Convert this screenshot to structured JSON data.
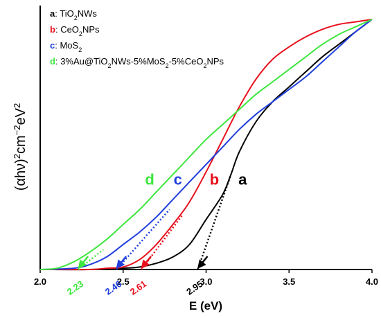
{
  "chart_data": {
    "type": "line",
    "title": "",
    "xlabel": "E (eV)",
    "ylabel": "(αhν)²cm⁻²eV²",
    "ylabel_parts": {
      "base": "(αhν)",
      "sup1": "2",
      "mid": "cm",
      "sup2": "−2",
      "unit": "eV",
      "sup3": "2"
    },
    "xlim": [
      2.0,
      4.0
    ],
    "ylim": [
      0,
      1.0
    ],
    "x_ticks": [
      "2.0",
      "2.5",
      "3.0",
      "3.5",
      "4.0"
    ],
    "x_tick_values": [
      2.0,
      2.5,
      3.0,
      3.5,
      4.0
    ],
    "legend_position": "top-left",
    "grid": false,
    "series": [
      {
        "key": "a",
        "legend": {
          "pre": "TiO",
          "sub": "2",
          "post": "NWs"
        },
        "color": "#000000",
        "x": [
          2.0,
          2.3,
          2.5,
          2.6,
          2.7,
          2.8,
          2.9,
          3.0,
          3.1,
          3.15,
          3.2,
          3.3,
          3.4,
          3.5,
          3.6,
          3.7,
          3.8,
          3.9,
          4.0
        ],
        "y": [
          0.0,
          0.0,
          0.005,
          0.01,
          0.025,
          0.05,
          0.1,
          0.2,
          0.3,
          0.38,
          0.47,
          0.59,
          0.67,
          0.73,
          0.79,
          0.85,
          0.9,
          0.95,
          1.0
        ],
        "gap_value": "2.95",
        "tangent": {
          "x": [
            2.95,
            3.15
          ],
          "y": [
            0.0,
            0.38
          ]
        }
      },
      {
        "key": "b",
        "legend": {
          "pre": "CeO",
          "sub": "2",
          "post": "NPs"
        },
        "color": "#e8101c",
        "x": [
          2.0,
          2.3,
          2.4,
          2.5,
          2.6,
          2.7,
          2.8,
          2.9,
          3.0,
          3.1,
          3.2,
          3.3,
          3.4,
          3.5,
          3.6,
          3.7,
          3.8,
          3.9,
          4.0
        ],
        "y": [
          0.0,
          0.0,
          0.005,
          0.01,
          0.04,
          0.1,
          0.18,
          0.27,
          0.39,
          0.52,
          0.65,
          0.76,
          0.84,
          0.89,
          0.93,
          0.96,
          0.98,
          0.99,
          1.0
        ],
        "gap_value": "2.61",
        "tangent": {
          "x": [
            2.61,
            2.86
          ],
          "y": [
            0.0,
            0.22
          ]
        }
      },
      {
        "key": "c",
        "legend": {
          "pre": "MoS",
          "sub": "2",
          "post": ""
        },
        "color": "#1f3fdd",
        "x": [
          2.0,
          2.2,
          2.3,
          2.4,
          2.5,
          2.6,
          2.7,
          2.8,
          2.9,
          3.0,
          3.1,
          3.2,
          3.3,
          3.4,
          3.5,
          3.6,
          3.7,
          3.8,
          3.9,
          4.0
        ],
        "y": [
          0.0,
          0.005,
          0.02,
          0.05,
          0.1,
          0.15,
          0.21,
          0.28,
          0.35,
          0.42,
          0.49,
          0.56,
          0.62,
          0.67,
          0.72,
          0.77,
          0.83,
          0.89,
          0.95,
          1.0
        ],
        "gap_value": "2.46",
        "tangent": {
          "x": [
            2.46,
            2.78
          ],
          "y": [
            0.0,
            0.24
          ]
        }
      },
      {
        "key": "d",
        "legend": {
          "pre": "3%Au@TiO",
          "sub": "2",
          "post": "NWs-5%MoS",
          "sub2": "2",
          "post2": "-5%CeO",
          "sub3": "2",
          "post3": "NPs"
        },
        "color": "#3ee63e",
        "x": [
          2.0,
          2.1,
          2.2,
          2.3,
          2.4,
          2.5,
          2.6,
          2.7,
          2.8,
          2.9,
          3.0,
          3.1,
          3.2,
          3.3,
          3.4,
          3.5,
          3.6,
          3.7,
          3.8,
          3.9,
          4.0
        ],
        "y": [
          0.0,
          0.005,
          0.03,
          0.07,
          0.12,
          0.18,
          0.24,
          0.31,
          0.38,
          0.45,
          0.52,
          0.58,
          0.64,
          0.7,
          0.75,
          0.8,
          0.85,
          0.9,
          0.94,
          0.97,
          1.0
        ],
        "gap_value": "2.23",
        "tangent": {
          "x": [
            2.23,
            2.38
          ],
          "y": [
            0.0,
            0.08
          ]
        }
      }
    ],
    "curve_labels": [
      {
        "text": "a",
        "x": 3.22,
        "y": 0.34,
        "color": "#000000"
      },
      {
        "text": "b",
        "x": 3.05,
        "y": 0.34,
        "color": "#e8101c"
      },
      {
        "text": "c",
        "x": 2.83,
        "y": 0.34,
        "color": "#1f3fdd"
      },
      {
        "text": "d",
        "x": 2.66,
        "y": 0.34,
        "color": "#3ee63e"
      }
    ]
  }
}
